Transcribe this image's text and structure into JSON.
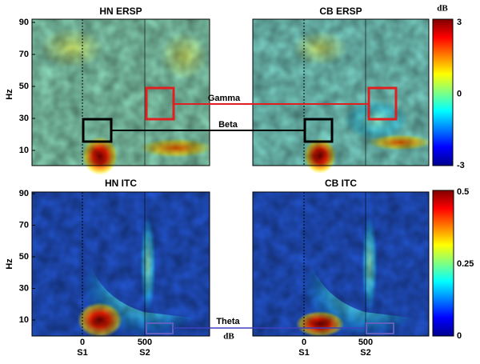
{
  "panels": [
    {
      "title": "HN ERSP"
    },
    {
      "title": "CB ERSP"
    },
    {
      "title": "HN ITC"
    },
    {
      "title": "CB ITC"
    }
  ],
  "y_axis": {
    "label": "Hz",
    "ticks": [
      "90",
      "70",
      "50",
      "30",
      "10"
    ]
  },
  "x_axis": {
    "ticks": [
      "0",
      "500"
    ],
    "events": [
      "S1",
      "S2"
    ]
  },
  "colorbars": [
    {
      "unit": "dB",
      "ticks": [
        "3",
        "0",
        "-3"
      ]
    },
    {
      "ticks": [
        "0.5",
        "0.25",
        "0"
      ]
    }
  ],
  "annotations": {
    "gamma": "Gamma",
    "beta": "Beta",
    "theta": "Theta",
    "unit": "dB"
  }
}
